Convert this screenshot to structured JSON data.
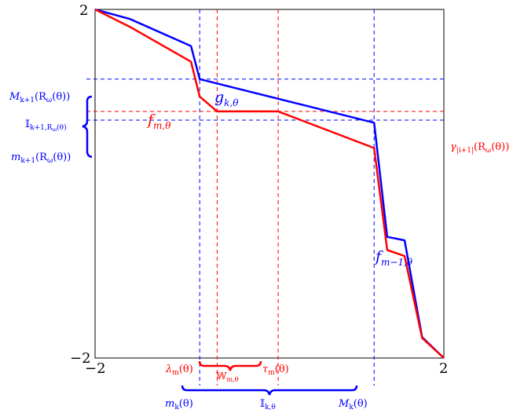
{
  "chart_data": {
    "type": "line",
    "xlim": [
      -2,
      2
    ],
    "ylim": [
      -2,
      2
    ],
    "axis_ticks": {
      "x_left": "−2",
      "x_right": "2",
      "y_top": "2",
      "y_bottom": "−2"
    },
    "series": [
      {
        "color": "#0000ff",
        "points": [
          [
            -2,
            2
          ],
          [
            -1.6,
            1.89
          ],
          [
            -0.9,
            1.58
          ],
          [
            -0.8,
            1.2
          ],
          [
            1.2,
            0.7
          ],
          [
            1.35,
            -0.61
          ],
          [
            1.55,
            -0.65
          ],
          [
            1.75,
            -1.76
          ],
          [
            2,
            -2
          ]
        ]
      },
      {
        "color": "#ff0000",
        "points": [
          [
            -2,
            2
          ],
          [
            -1.6,
            1.8
          ],
          [
            -0.9,
            1.4
          ],
          [
            -0.8,
            1.0
          ],
          [
            -0.6,
            0.83
          ],
          [
            0.1,
            0.83
          ],
          [
            1.2,
            0.41
          ],
          [
            1.35,
            -0.76
          ],
          [
            1.55,
            -0.83
          ],
          [
            1.75,
            -1.77
          ],
          [
            2,
            -2
          ]
        ]
      }
    ],
    "vlines": [
      {
        "x": -0.8,
        "color": "#0000ff"
      },
      {
        "x": -0.6,
        "color": "#ff0000"
      },
      {
        "x": 0.1,
        "color": "#ff0000"
      },
      {
        "x": 1.2,
        "color": "#0000ff"
      }
    ],
    "hlines": [
      {
        "y": 1.2,
        "color": "#0000ff"
      },
      {
        "y": 0.83,
        "color": "#ff0000"
      },
      {
        "y": 0.73,
        "color": "#0000ff"
      }
    ]
  },
  "labels": {
    "g_k": "g",
    "g_k_sub": "k,θ",
    "f_m": "f",
    "f_m_sub": "m,θ",
    "f_m1": "f",
    "f_m1_sub": "m−1,θ",
    "M_k1": "M",
    "M_k1_sub": "k+1",
    "M_k1_arg": "(R",
    "M_k1_arg_sub": "ω",
    "M_k1_arg_end": "(θ))",
    "I_k1": "𝕀",
    "I_k1_sub": "k+1,R",
    "I_k1_subsub": "ω",
    "I_k1_end": "(θ)",
    "m_k1": "m",
    "m_k1_sub": "k+1",
    "m_k1_arg": "(R",
    "m_k1_arg_sub": "ω",
    "m_k1_arg_end": "(θ))",
    "gamma": "γ",
    "gamma_sub": "|i+1|",
    "gamma_arg": "(R",
    "gamma_arg_sub": "ω",
    "gamma_arg_end": "(θ))",
    "lambda": "λ",
    "lambda_sub": "m",
    "lambda_end": "(θ)",
    "tau": "τ",
    "tau_sub": "m",
    "tau_end": "(θ)",
    "W": "𝕎",
    "W_sub": "m,θ",
    "m_k": "m",
    "m_k_sub": "k",
    "m_k_end": "(θ)",
    "I_k": "𝕀",
    "I_k_sub": "k,θ",
    "M_k": "M",
    "M_k_sub": "k",
    "M_k_end": "(θ)"
  }
}
